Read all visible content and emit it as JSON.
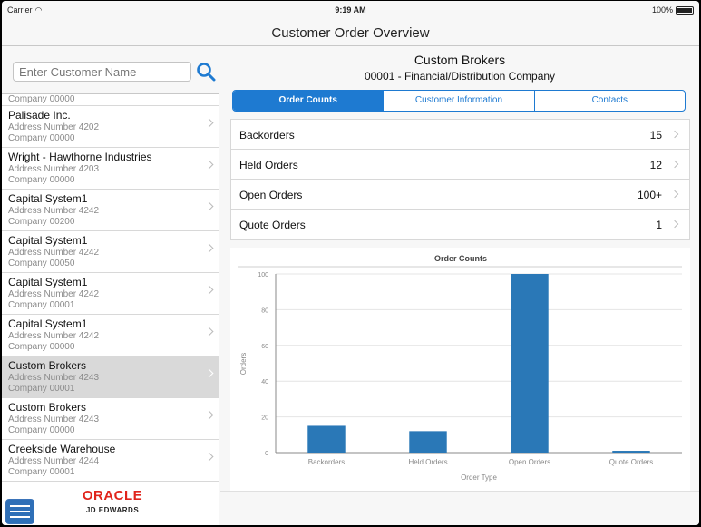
{
  "status": {
    "carrier": "Carrier",
    "time": "9:19 AM",
    "battery": "100%"
  },
  "app": {
    "title": "Customer Order Overview"
  },
  "search": {
    "placeholder": "Enter Customer Name"
  },
  "list": {
    "partial_top": "Company 00000",
    "items": [
      {
        "name": "Palisade Inc.",
        "address": "Address Number 4202",
        "company": "Company 00000"
      },
      {
        "name": "Wright - Hawthorne Industries",
        "address": "Address Number 4203",
        "company": "Company 00000"
      },
      {
        "name": "Capital System1",
        "address": "Address Number 4242",
        "company": "Company 00200"
      },
      {
        "name": "Capital System1",
        "address": "Address Number 4242",
        "company": "Company 00050"
      },
      {
        "name": "Capital System1",
        "address": "Address Number 4242",
        "company": "Company 00001"
      },
      {
        "name": "Capital System1",
        "address": "Address Number 4242",
        "company": "Company 00000"
      },
      {
        "name": "Custom Brokers",
        "address": "Address Number 4243",
        "company": "Company 00001"
      },
      {
        "name": "Custom Brokers",
        "address": "Address Number 4243",
        "company": "Company 00000"
      },
      {
        "name": "Creekside Warehouse",
        "address": "Address Number 4244",
        "company": "Company 00001"
      }
    ]
  },
  "footer": {
    "logo_top": "ORACLE",
    "logo_bottom": "JD EDWARDS"
  },
  "customer": {
    "name": "Custom Brokers",
    "subtitle": "00001 - Financial/Distribution Company"
  },
  "tabs": [
    {
      "label": "Order Counts"
    },
    {
      "label": "Customer Information"
    },
    {
      "label": "Contacts"
    }
  ],
  "counts": [
    {
      "label": "Backorders",
      "value": "15"
    },
    {
      "label": "Held Orders",
      "value": "12"
    },
    {
      "label": "Open Orders",
      "value": "100+"
    },
    {
      "label": "Quote Orders",
      "value": "1"
    }
  ],
  "colors": {
    "accent": "#1e7ad1",
    "bar": "#2a78b7",
    "selected_row": "#d9d9d9"
  },
  "chart_data": {
    "type": "bar",
    "title": "Order Counts",
    "xlabel": "Order Type",
    "ylabel": "Orders",
    "categories": [
      "Backorders",
      "Held Orders",
      "Open Orders",
      "Quote Orders"
    ],
    "values": [
      15,
      12,
      100,
      1
    ],
    "ylim": [
      0,
      100
    ],
    "yticks": [
      0,
      20,
      40,
      60,
      80,
      100
    ],
    "grid": true
  }
}
